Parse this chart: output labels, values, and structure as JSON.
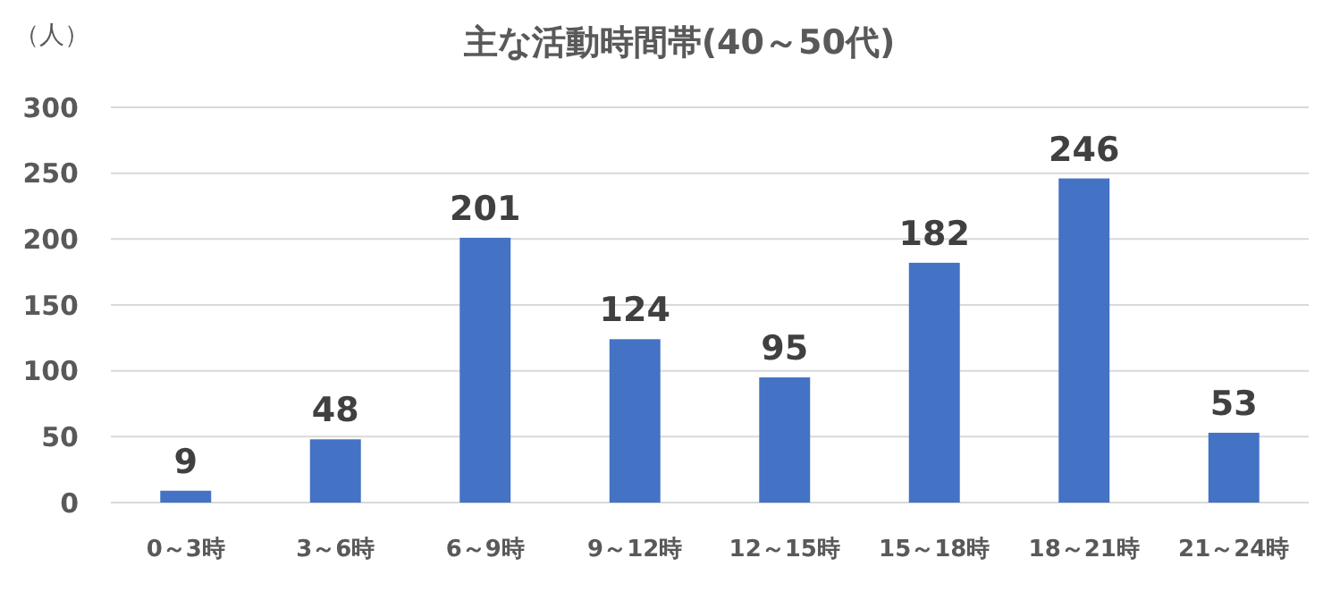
{
  "chart_data": {
    "type": "bar",
    "title": "主な活動時間帯(40～50代)",
    "ylabel": "（人）",
    "categories": [
      "0～3時",
      "3～6時",
      "6～9時",
      "9～12時",
      "12～15時",
      "15～18時",
      "18～21時",
      "21～24時"
    ],
    "values": [
      9,
      48,
      201,
      124,
      95,
      182,
      246,
      53
    ],
    "color": "#4472c4",
    "ylim": [
      0,
      300
    ],
    "yticks": [
      0,
      50,
      100,
      150,
      200,
      250,
      300
    ],
    "grid": "y",
    "data_labels": true
  }
}
